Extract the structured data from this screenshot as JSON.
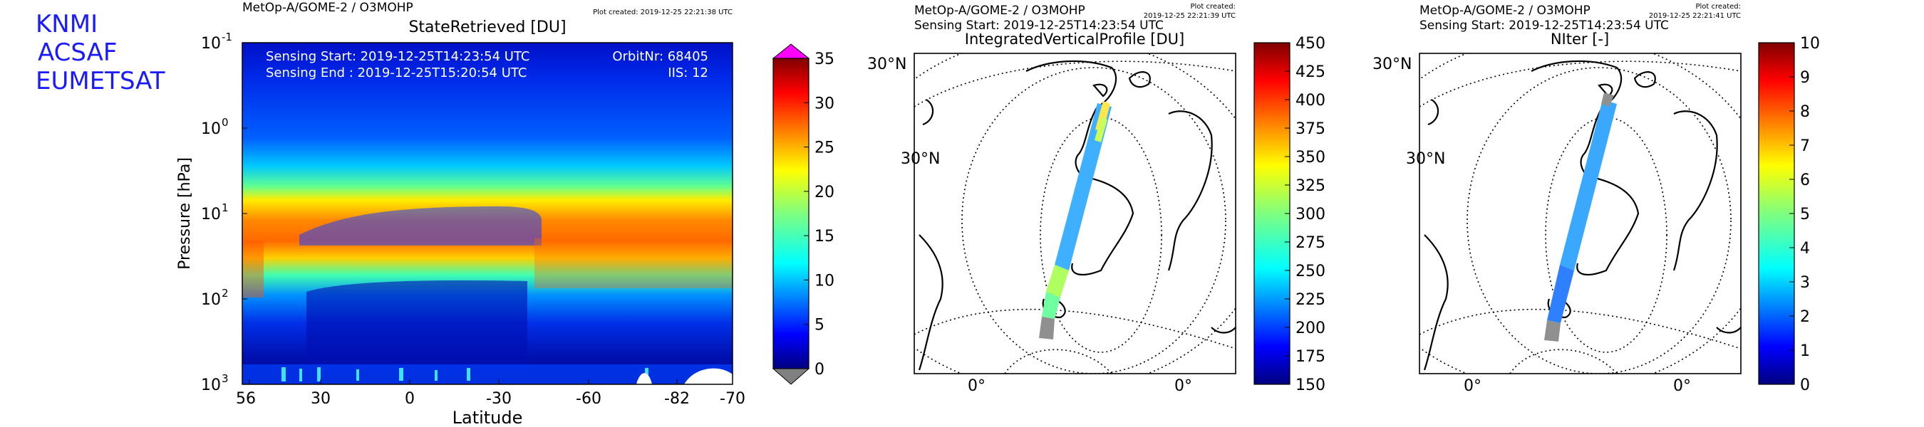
{
  "organizations": [
    "KNMI",
    "ACSAF",
    "EUMETSAT"
  ],
  "colors": {
    "org_text": "#1a1aff",
    "over_color": "#ff00ff",
    "under_color": "#808080",
    "jet": [
      "#00007f",
      "#0000ff",
      "#007fff",
      "#00ffff",
      "#7fff7f",
      "#ffff00",
      "#ff7f00",
      "#ff0000",
      "#7f0000"
    ]
  },
  "chart_data": [
    {
      "type": "heatmap",
      "header_left": "MetOp-A/GOME-2 / O3MOHP",
      "header_right": "Plot created: 2019-12-25 22:21:38 UTC",
      "title": "StateRetrieved [DU]",
      "info_left": [
        "Sensing Start: 2019-12-25T14:23:54 UTC",
        "Sensing End  : 2019-12-25T15:20:54 UTC"
      ],
      "info_right": [
        "OrbitNr: 68405",
        "IIS: 12"
      ],
      "xlabel": "Latitude",
      "ylabel": "Pressure [hPa]",
      "x_ticks": [
        "56",
        "30",
        "0",
        "-30",
        "-60",
        "-82",
        "-70"
      ],
      "y_scale": "log",
      "y_range": [
        0.1,
        1000
      ],
      "y_ticks": [
        {
          "base": "10",
          "exp": "-1"
        },
        {
          "base": "10",
          "exp": "0"
        },
        {
          "base": "10",
          "exp": "1"
        },
        {
          "base": "10",
          "exp": "2"
        },
        {
          "base": "10",
          "exp": "3"
        }
      ],
      "ozone_maximum_band": [
        {
          "lat": "56",
          "pressure_hpa": 40,
          "value_du": 30
        },
        {
          "lat": "30",
          "pressure_hpa": 25,
          "value_du": 26
        },
        {
          "lat": "0",
          "pressure_hpa": 20,
          "value_du": 24
        },
        {
          "lat": "-30",
          "pressure_hpa": 20,
          "value_du": 25
        },
        {
          "lat": "-60",
          "pressure_hpa": 40,
          "value_du": 28
        },
        {
          "lat": "-82",
          "pressure_hpa": 45,
          "value_du": 30
        },
        {
          "lat": "-70",
          "pressure_hpa": 40,
          "value_du": 27
        }
      ],
      "colorbar": {
        "min": 0,
        "max": 35,
        "ticks": [
          "0",
          "5",
          "10",
          "15",
          "20",
          "25",
          "30",
          "35"
        ],
        "extend": "both"
      }
    },
    {
      "type": "map",
      "header_left": "MetOp-A/GOME-2 / O3MOHP",
      "header_right": [
        "Plot created:",
        "2019-12-25 22:21:39 UTC"
      ],
      "subtitle": "Sensing Start: 2019-12-25T14:23:54 UTC",
      "title": "IntegratedVerticalProfile [DU]",
      "lat_labels": [
        "30°N",
        "30°N"
      ],
      "lon_labels": [
        "0°",
        "0°"
      ],
      "colorbar": {
        "min": 150,
        "max": 450,
        "ticks": [
          "150",
          "175",
          "200",
          "225",
          "250",
          "275",
          "300",
          "325",
          "350",
          "375",
          "400",
          "425",
          "450"
        ]
      }
    },
    {
      "type": "map",
      "header_left": "MetOp-A/GOME-2 / O3MOHP",
      "header_right": [
        "Plot created:",
        "2019-12-25 22:21:41 UTC"
      ],
      "subtitle": "Sensing Start: 2019-12-25T14:23:54 UTC",
      "title": "NIter [-]",
      "lat_labels": [
        "30°N",
        "30°N"
      ],
      "lon_labels": [
        "0°",
        "0°"
      ],
      "colorbar": {
        "min": 0,
        "max": 10,
        "ticks": [
          "0",
          "1",
          "2",
          "3",
          "4",
          "5",
          "6",
          "7",
          "8",
          "9",
          "10"
        ]
      }
    }
  ]
}
